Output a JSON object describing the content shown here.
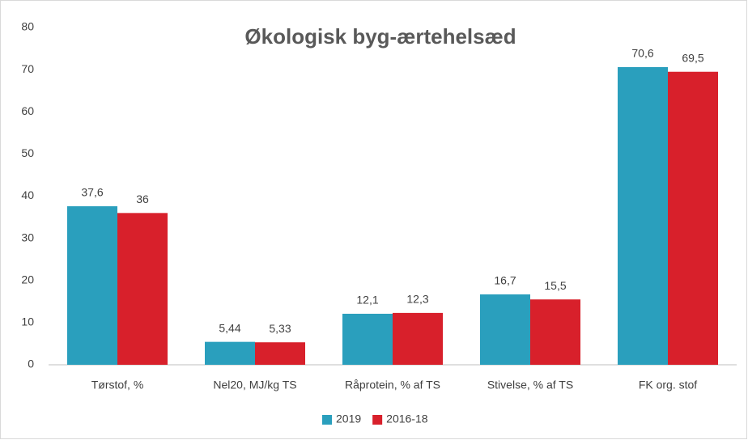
{
  "chart_data": {
    "type": "bar",
    "title": "Økologisk byg-ærtehelsæd",
    "categories": [
      "Tørstof, %",
      "Nel20, MJ/kg TS",
      "Råprotein, % af TS",
      "Stivelse, % af TS",
      "FK org. stof"
    ],
    "series": [
      {
        "name": "2019",
        "color": "#2a9fbd",
        "values": [
          37.6,
          5.44,
          12.1,
          16.7,
          70.6
        ],
        "value_labels": [
          "37,6",
          "5,44",
          "12,1",
          "16,7",
          "70,6"
        ]
      },
      {
        "name": "2016-18",
        "color": "#d8202b",
        "values": [
          36,
          5.33,
          12.3,
          15.5,
          69.5
        ],
        "value_labels": [
          "36",
          "5,33",
          "12,3",
          "15,5",
          "69,5"
        ]
      }
    ],
    "ylim": [
      0,
      80
    ],
    "yticks": [
      0,
      10,
      20,
      30,
      40,
      50,
      60,
      70,
      80
    ],
    "grid": false,
    "legend": "bottom"
  }
}
